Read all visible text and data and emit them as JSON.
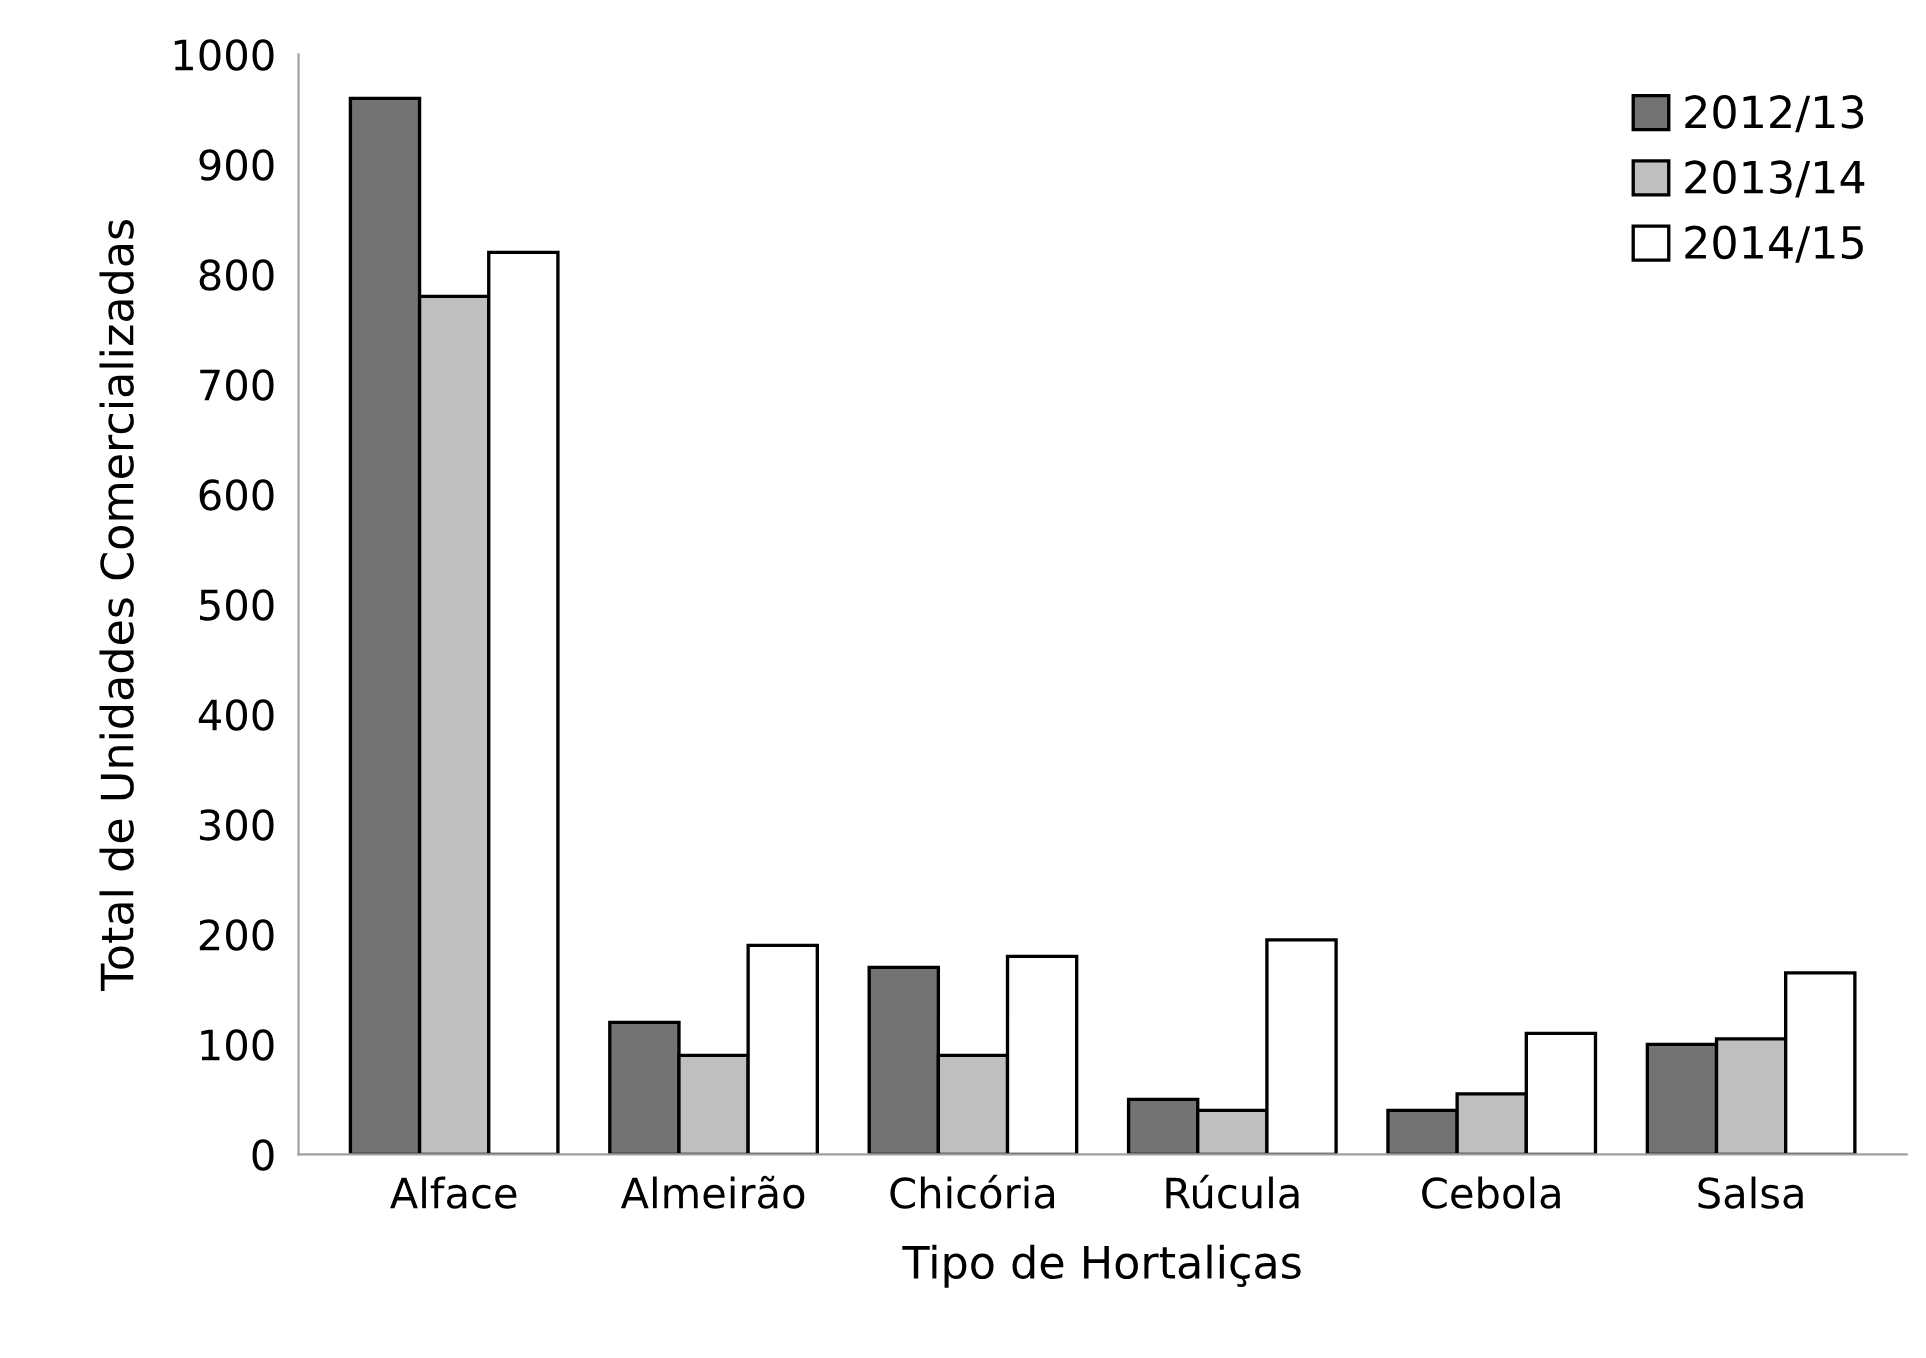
{
  "chart_data": {
    "type": "bar",
    "xlabel": "Tipo de Hortaliças",
    "ylabel": "Total de Unidades Comercializadas",
    "categories": [
      "Alface",
      "Almeirão",
      "Chicória",
      "Rúcula",
      "Cebola",
      "Salsa"
    ],
    "series": [
      {
        "name": "2012/13",
        "color": "#737373",
        "values": [
          960,
          120,
          170,
          50,
          40,
          100
        ]
      },
      {
        "name": "2013/14",
        "color": "#bfbfbf",
        "values": [
          780,
          90,
          90,
          40,
          55,
          105
        ]
      },
      {
        "name": "2014/15",
        "color": "#ffffff",
        "values": [
          820,
          190,
          180,
          195,
          110,
          165
        ]
      }
    ],
    "ylim": [
      0,
      1000
    ],
    "yticks": [
      0,
      100,
      200,
      300,
      400,
      500,
      600,
      700,
      800,
      900,
      1000
    ],
    "grid": false,
    "legend": "top right"
  }
}
